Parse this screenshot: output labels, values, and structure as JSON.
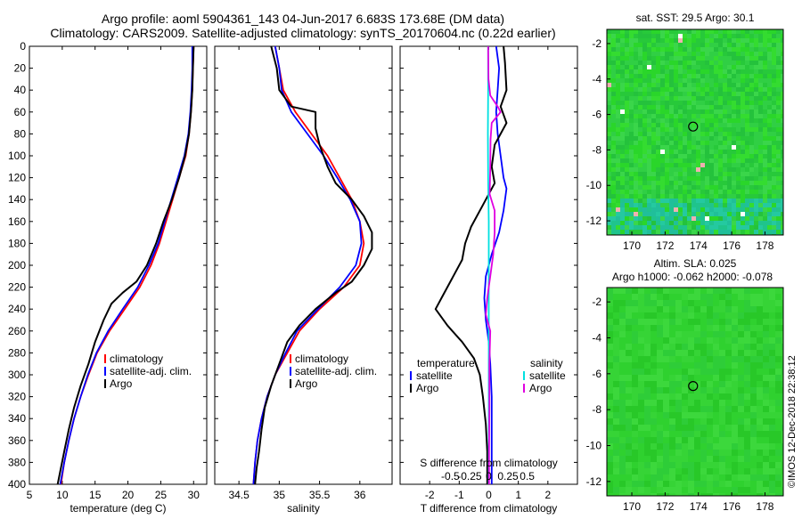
{
  "header": {
    "line1": "Argo profile: aoml 5904361_143 04-Jun-2017 6.683S 173.68E (DM data)",
    "line2": "Climatology: CARS2009. Satellite-adjusted climatology: synTS_20170604.nc (0.22d earlier)"
  },
  "colors": {
    "climatology": "#ff0000",
    "sat_adj": "#0000ff",
    "argo": "#000000",
    "sat_diff": "#00e0e0",
    "sal_diff": "#e000e0",
    "map_base": "#22cc22"
  },
  "chart_data": [
    {
      "type": "line",
      "name": "temperature",
      "xlabel": "temperature (deg C)",
      "ylabel": "",
      "xlim": [
        5,
        32
      ],
      "ylim": [
        400,
        0
      ],
      "xticks": [
        5,
        10,
        15,
        20,
        25,
        30
      ],
      "yticks": [
        0,
        20,
        40,
        60,
        80,
        100,
        120,
        140,
        160,
        180,
        200,
        220,
        240,
        260,
        280,
        300,
        320,
        340,
        360,
        380,
        400
      ],
      "legend": {
        "placement": "bottom-right",
        "entries": [
          "climatology",
          "satellite-adj. clim.",
          "Argo"
        ]
      },
      "series": [
        {
          "name": "climatology",
          "color": "red",
          "points": [
            [
              30,
              0
            ],
            [
              29.9,
              20
            ],
            [
              29.8,
              40
            ],
            [
              29.6,
              60
            ],
            [
              29.3,
              80
            ],
            [
              28.8,
              100
            ],
            [
              27.8,
              120
            ],
            [
              26.8,
              140
            ],
            [
              25.8,
              160
            ],
            [
              24.8,
              180
            ],
            [
              23.5,
              200
            ],
            [
              21.8,
              220
            ],
            [
              19.5,
              240
            ],
            [
              17.2,
              260
            ],
            [
              15.3,
              280
            ],
            [
              14,
              300
            ],
            [
              12.8,
              320
            ],
            [
              11.8,
              340
            ],
            [
              11,
              360
            ],
            [
              10.3,
              380
            ],
            [
              9.8,
              400
            ]
          ]
        },
        {
          "name": "satellite-adj. clim.",
          "color": "blue",
          "points": [
            [
              29.8,
              0
            ],
            [
              29.8,
              20
            ],
            [
              29.7,
              40
            ],
            [
              29.5,
              60
            ],
            [
              29.2,
              80
            ],
            [
              28.6,
              100
            ],
            [
              27.6,
              120
            ],
            [
              26.6,
              140
            ],
            [
              25.6,
              160
            ],
            [
              24.6,
              180
            ],
            [
              23.2,
              200
            ],
            [
              21.5,
              220
            ],
            [
              19.2,
              240
            ],
            [
              17,
              260
            ],
            [
              15.2,
              280
            ],
            [
              13.9,
              300
            ],
            [
              12.8,
              320
            ],
            [
              11.8,
              340
            ],
            [
              11,
              360
            ],
            [
              10.3,
              380
            ],
            [
              9.7,
              400
            ]
          ]
        },
        {
          "name": "Argo",
          "color": "black",
          "points": [
            [
              30,
              0
            ],
            [
              29.9,
              20
            ],
            [
              29.8,
              40
            ],
            [
              29.6,
              60
            ],
            [
              29.3,
              80
            ],
            [
              28.7,
              100
            ],
            [
              27.8,
              120
            ],
            [
              26.7,
              140
            ],
            [
              25.4,
              160
            ],
            [
              24.3,
              180
            ],
            [
              22.9,
              200
            ],
            [
              21.3,
              215
            ],
            [
              19.2,
              225
            ],
            [
              17.5,
              235
            ],
            [
              16.3,
              250
            ],
            [
              15,
              270
            ],
            [
              14,
              290
            ],
            [
              12.8,
              310
            ],
            [
              11.8,
              330
            ],
            [
              11,
              350
            ],
            [
              10.3,
              370
            ],
            [
              9.8,
              385
            ],
            [
              9.3,
              400
            ]
          ]
        }
      ]
    },
    {
      "type": "line",
      "name": "salinity",
      "xlabel": "salinity",
      "ylabel": "",
      "xlim": [
        34.2,
        36.4
      ],
      "ylim": [
        400,
        0
      ],
      "xticks": [
        34.5,
        35,
        35.5,
        36
      ],
      "xticklabels": [
        "34.5",
        "35",
        "35.5",
        "36"
      ],
      "legend": {
        "placement": "bottom-right",
        "entries": [
          "climatology",
          "satellite-adj. clim.",
          "Argo"
        ]
      },
      "series": [
        {
          "name": "climatology",
          "color": "red",
          "points": [
            [
              34.95,
              0
            ],
            [
              35.0,
              20
            ],
            [
              35.05,
              40
            ],
            [
              35.2,
              60
            ],
            [
              35.4,
              80
            ],
            [
              35.6,
              100
            ],
            [
              35.75,
              120
            ],
            [
              35.9,
              140
            ],
            [
              36.0,
              160
            ],
            [
              36.05,
              180
            ],
            [
              36.0,
              200
            ],
            [
              35.8,
              220
            ],
            [
              35.5,
              240
            ],
            [
              35.25,
              260
            ],
            [
              35.1,
              280
            ],
            [
              34.95,
              300
            ],
            [
              34.85,
              320
            ],
            [
              34.78,
              340
            ],
            [
              34.73,
              360
            ],
            [
              34.7,
              380
            ],
            [
              34.68,
              400
            ]
          ]
        },
        {
          "name": "satellite-adj. clim.",
          "color": "blue",
          "points": [
            [
              34.95,
              0
            ],
            [
              35.0,
              20
            ],
            [
              35.03,
              40
            ],
            [
              35.15,
              60
            ],
            [
              35.35,
              80
            ],
            [
              35.55,
              100
            ],
            [
              35.72,
              120
            ],
            [
              35.88,
              140
            ],
            [
              36.0,
              160
            ],
            [
              36.02,
              180
            ],
            [
              35.95,
              200
            ],
            [
              35.75,
              220
            ],
            [
              35.48,
              240
            ],
            [
              35.22,
              260
            ],
            [
              35.08,
              280
            ],
            [
              34.95,
              300
            ],
            [
              34.85,
              320
            ],
            [
              34.78,
              340
            ],
            [
              34.73,
              360
            ],
            [
              34.7,
              380
            ],
            [
              34.68,
              400
            ]
          ]
        },
        {
          "name": "Argo",
          "color": "black",
          "points": [
            [
              34.9,
              0
            ],
            [
              34.97,
              20
            ],
            [
              35.0,
              40
            ],
            [
              35.15,
              55
            ],
            [
              35.45,
              60
            ],
            [
              35.45,
              75
            ],
            [
              35.5,
              90
            ],
            [
              35.6,
              110
            ],
            [
              35.7,
              125
            ],
            [
              35.9,
              140
            ],
            [
              36.05,
              155
            ],
            [
              36.15,
              170
            ],
            [
              36.15,
              185
            ],
            [
              36.05,
              200
            ],
            [
              35.9,
              215
            ],
            [
              35.7,
              225
            ],
            [
              35.45,
              240
            ],
            [
              35.25,
              255
            ],
            [
              35.1,
              270
            ],
            [
              35.0,
              290
            ],
            [
              34.9,
              310
            ],
            [
              34.82,
              330
            ],
            [
              34.78,
              350
            ],
            [
              34.75,
              370
            ],
            [
              34.72,
              385
            ],
            [
              34.7,
              400
            ]
          ]
        }
      ]
    },
    {
      "type": "line",
      "name": "difference",
      "xlabel": "T difference from climatology",
      "xlabel_top": "S difference from climatology",
      "xlim": [
        -3,
        3
      ],
      "ylim": [
        400,
        0
      ],
      "xticks": [
        -2,
        -1,
        0,
        1,
        2
      ],
      "xticklabels": [
        "-2",
        "-1",
        "0",
        "1",
        "2"
      ],
      "top_xticks": [
        -0.5,
        -0.25,
        0,
        0.25,
        0.5
      ],
      "top_xticklabels": [
        "-0.5",
        "-0.25",
        "0",
        "0.25",
        "0.5"
      ],
      "legend": {
        "placement": "bottom",
        "temperature_title": "temperature",
        "salinity_title": "salinity",
        "entries": [
          "satellite",
          "Argo",
          "satellite",
          "Argo"
        ]
      },
      "series": [
        {
          "name": "temperature satellite",
          "color": "blue",
          "points": [
            [
              0.25,
              0
            ],
            [
              0.35,
              20
            ],
            [
              0.3,
              40
            ],
            [
              0.25,
              60
            ],
            [
              0.3,
              80
            ],
            [
              0.4,
              100
            ],
            [
              0.5,
              120
            ],
            [
              0.6,
              130
            ],
            [
              0.5,
              150
            ],
            [
              0.35,
              170
            ],
            [
              0.1,
              190
            ],
            [
              -0.1,
              210
            ],
            [
              -0.15,
              230
            ],
            [
              -0.1,
              250
            ],
            [
              0,
              270
            ],
            [
              0.05,
              290
            ],
            [
              0.1,
              320
            ],
            [
              0.1,
              360
            ],
            [
              0.1,
              400
            ]
          ]
        },
        {
          "name": "temperature Argo",
          "color": "black",
          "points": [
            [
              0.5,
              0
            ],
            [
              0.55,
              15
            ],
            [
              0.6,
              40
            ],
            [
              0.4,
              55
            ],
            [
              0.6,
              70
            ],
            [
              0.2,
              90
            ],
            [
              0.1,
              110
            ],
            [
              0.2,
              125
            ],
            [
              -0.2,
              145
            ],
            [
              -0.6,
              165
            ],
            [
              -0.8,
              180
            ],
            [
              -0.9,
              195
            ],
            [
              -1.3,
              215
            ],
            [
              -1.6,
              230
            ],
            [
              -1.8,
              240
            ],
            [
              -1.4,
              255
            ],
            [
              -0.9,
              270
            ],
            [
              -0.5,
              285
            ],
            [
              -0.3,
              300
            ],
            [
              -0.2,
              320
            ],
            [
              -0.1,
              345
            ],
            [
              -0.05,
              370
            ],
            [
              -0.05,
              400
            ]
          ]
        },
        {
          "name": "salinity satellite",
          "color": "cyan",
          "points": [
            [
              -0.02,
              0
            ],
            [
              -0.02,
              40
            ],
            [
              -0.03,
              80
            ],
            [
              -0.02,
              120
            ],
            [
              0,
              160
            ],
            [
              0,
              200
            ],
            [
              0,
              240
            ],
            [
              0,
              280
            ],
            [
              0,
              320
            ],
            [
              0,
              360
            ],
            [
              0,
              400
            ]
          ]
        },
        {
          "name": "salinity Argo",
          "color": "magenta",
          "points": [
            [
              -0.02,
              0
            ],
            [
              -0.01,
              30
            ],
            [
              0.05,
              45
            ],
            [
              0.3,
              55
            ],
            [
              0.4,
              60
            ],
            [
              0.1,
              70
            ],
            [
              0.06,
              85
            ],
            [
              0.05,
              110
            ],
            [
              0.03,
              135
            ],
            [
              0.2,
              150
            ],
            [
              0.2,
              170
            ],
            [
              0.15,
              190
            ],
            [
              0.05,
              210
            ],
            [
              -0.05,
              230
            ],
            [
              -0.1,
              245
            ],
            [
              0.05,
              260
            ],
            [
              0.02,
              290
            ],
            [
              0.02,
              330
            ],
            [
              0.01,
              370
            ],
            [
              0.01,
              400
            ]
          ]
        }
      ]
    },
    {
      "type": "heatmap",
      "name": "sst map",
      "title": "sat. SST: 29.5 Argo: 30.1",
      "xlim": [
        168.5,
        179.1
      ],
      "ylim": [
        -12.8,
        -1.2
      ],
      "xticks": [
        170,
        172,
        174,
        176,
        178
      ],
      "yticks": [
        -2,
        -4,
        -6,
        -8,
        -10,
        -12
      ],
      "marker": {
        "lon": 173.68,
        "lat": -6.683
      }
    },
    {
      "type": "heatmap",
      "name": "sla map",
      "title": "Altim. SLA: 0.025",
      "subtitle": "Argo h1000: -0.062 h2000: -0.078",
      "xlim": [
        168.5,
        179.1
      ],
      "ylim": [
        -12.8,
        -1.2
      ],
      "xticks": [
        170,
        172,
        174,
        176,
        178
      ],
      "yticks": [
        -2,
        -4,
        -6,
        -8,
        -10,
        -12
      ],
      "marker": {
        "lon": 173.68,
        "lat": -6.683
      }
    }
  ],
  "credit": "©IMOS 12-Dec-2018 22:38:12"
}
